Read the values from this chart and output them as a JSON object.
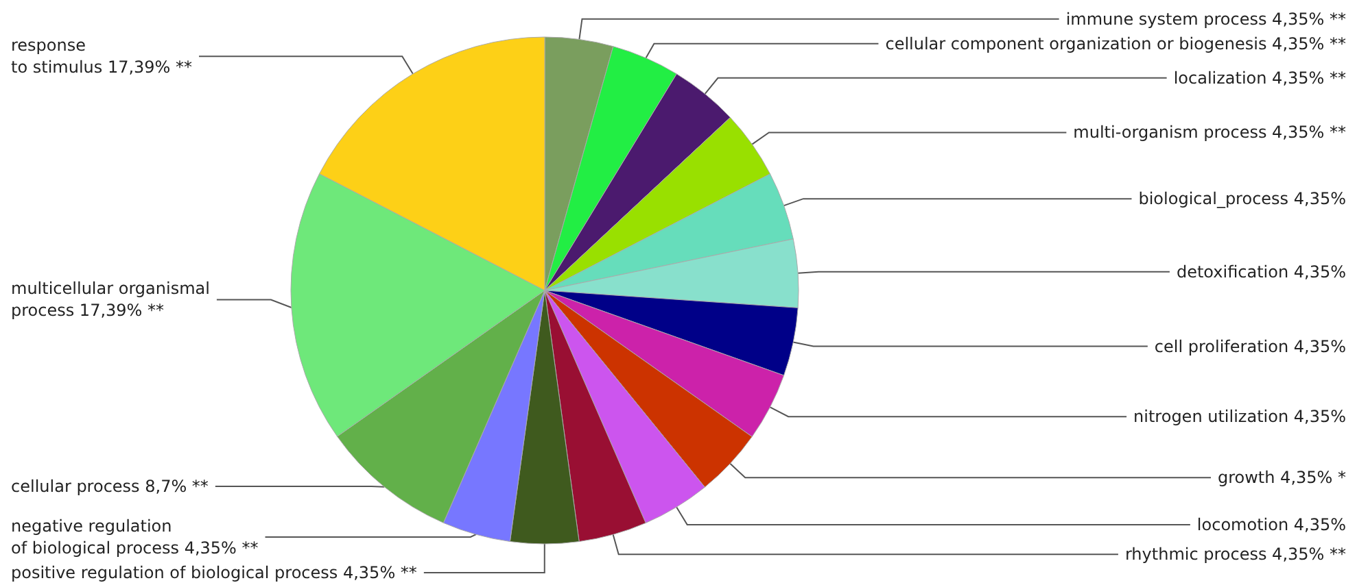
{
  "chart_data": {
    "type": "pie",
    "categories": [
      "immune system process",
      "cellular component organization or biogenesis",
      "localization",
      "multi-organism process",
      "biological_process",
      "detoxification",
      "cell proliferation",
      "nitrogen utilization",
      "growth",
      "locomotion",
      "rhythmic process",
      "positive regulation of biological process",
      "negative regulation\nof biological process",
      "cellular process",
      "multicellular organismal\nprocess",
      "response\nto stimulus"
    ],
    "values": [
      4.35,
      4.35,
      4.35,
      4.35,
      4.35,
      4.35,
      4.35,
      4.35,
      4.35,
      4.35,
      4.35,
      4.35,
      4.35,
      8.7,
      17.39,
      17.39
    ],
    "value_labels": [
      "4,35% **",
      "4,35% **",
      "4,35% **",
      "4,35% **",
      "4,35%",
      "4,35%",
      "4,35%",
      "4,35%",
      "4,35% *",
      "4,35%",
      "4,35% **",
      "4,35% **",
      "4,35% **",
      "8,7% **",
      "17,39% **",
      "17,39% **"
    ],
    "colors": [
      "#7a9e5e",
      "#22ee44",
      "#4b1a6e",
      "#99e000",
      "#66ddbb",
      "#88e0cc",
      "#000088",
      "#cc22aa",
      "#cc3300",
      "#cc55ee",
      "#990f33",
      "#3f5a1e",
      "#7777ff",
      "#62b04a",
      "#6ee87a",
      "#fdd017"
    ],
    "legend": false
  }
}
